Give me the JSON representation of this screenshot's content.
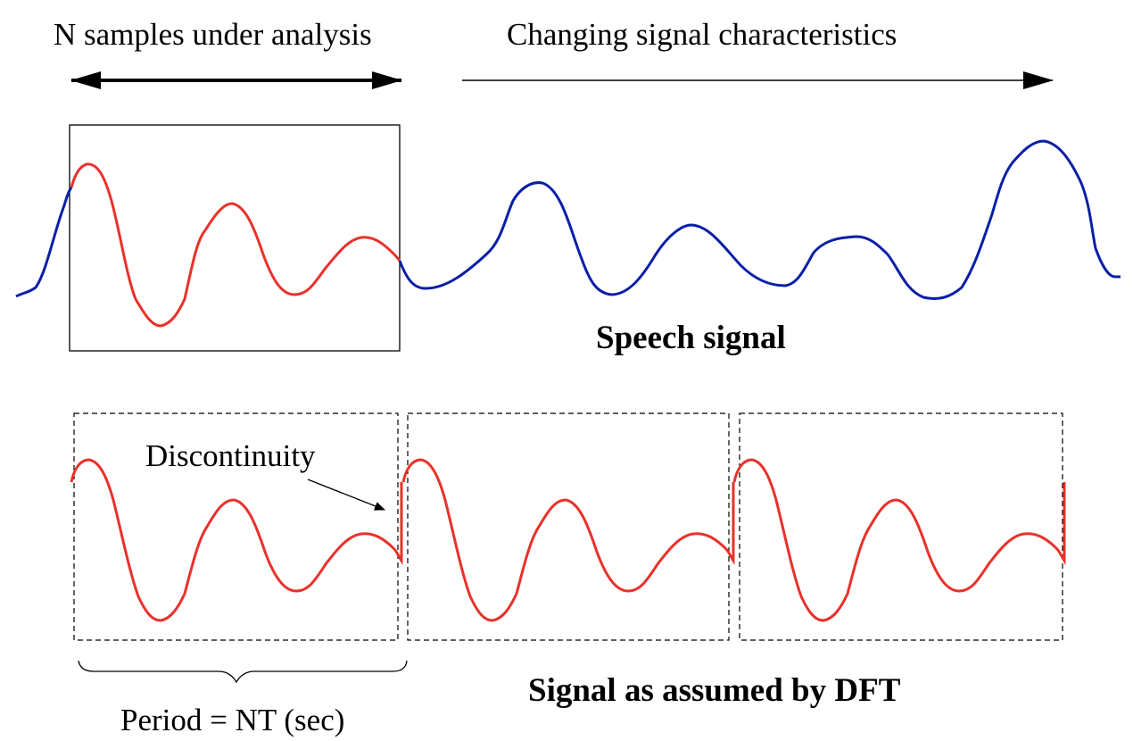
{
  "labels": {
    "n_samples": "N samples under analysis",
    "changing": "Changing signal characteristics",
    "speech": "Speech signal",
    "discontinuity": "Discontinuity",
    "period": "Period = NT (sec)",
    "dft": "Signal as assumed by DFT"
  },
  "colors": {
    "analyzed_segment": "#e8322b",
    "speech_signal": "#0a1fa8",
    "frame": "#000000"
  }
}
